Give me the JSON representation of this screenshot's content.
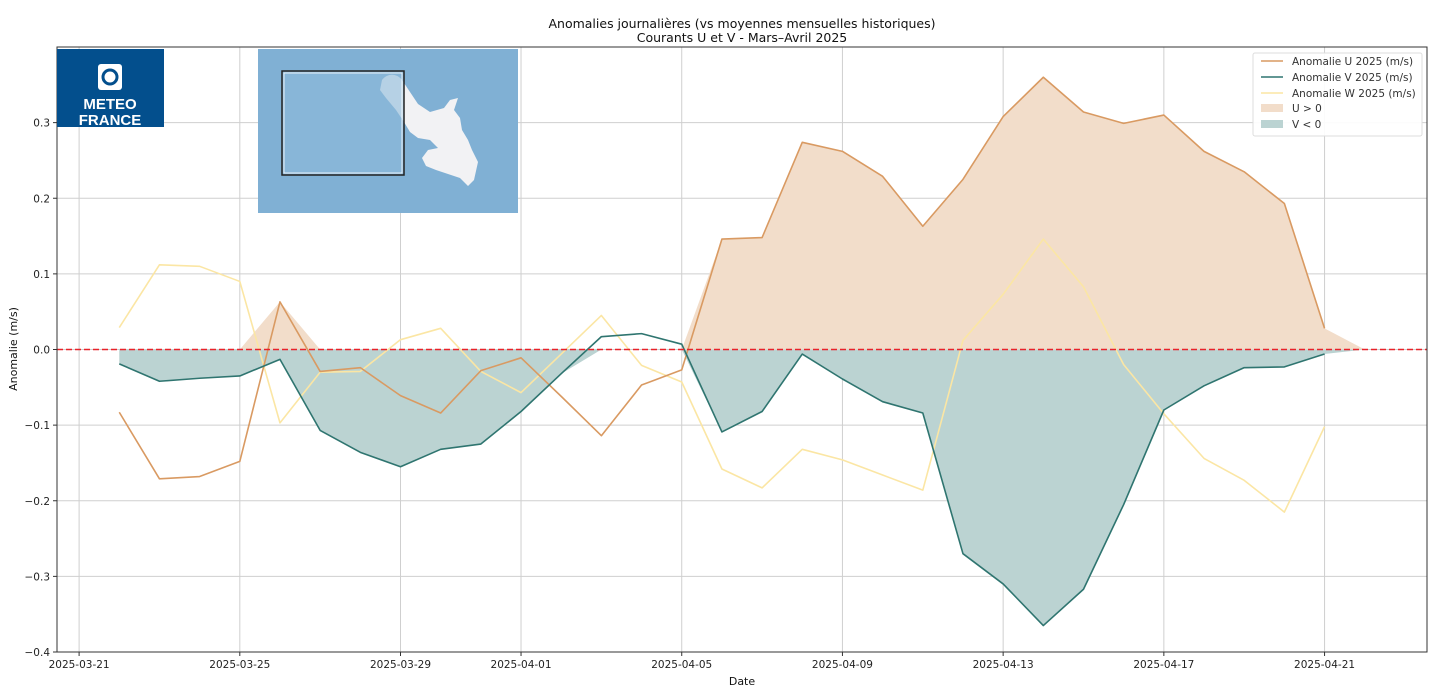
{
  "chart_data": {
    "type": "line",
    "title": "Anomalies journalières (vs moyennes mensuelles historiques)",
    "subtitle": "Courants U et V - Mars–Avril 2025",
    "xlabel": "Date",
    "ylabel": "Anomalie (m/s)",
    "ylim": [
      -0.4,
      0.4
    ],
    "xlim": [
      "2025-03-20",
      "2025-04-23"
    ],
    "grid": true,
    "legend_position": "top-right",
    "x_ticks": [
      "2025-03-21",
      "2025-03-25",
      "2025-03-29",
      "2025-04-01",
      "2025-04-05",
      "2025-04-09",
      "2025-04-13",
      "2025-04-17",
      "2025-04-21"
    ],
    "y_ticks": [
      "−0.4",
      "−0.3",
      "−0.2",
      "−0.1",
      "0.0",
      "0.1",
      "0.2",
      "0.3"
    ],
    "y_tick_values": [
      -0.4,
      -0.3,
      -0.2,
      -0.1,
      0.0,
      0.1,
      0.2,
      0.3
    ],
    "x": [
      "2025-03-22",
      "2025-03-23",
      "2025-03-24",
      "2025-03-25",
      "2025-03-26",
      "2025-03-27",
      "2025-03-28",
      "2025-03-29",
      "2025-03-30",
      "2025-03-31",
      "2025-04-01",
      "2025-04-02",
      "2025-04-03",
      "2025-04-04",
      "2025-04-05",
      "2025-04-06",
      "2025-04-07",
      "2025-04-08",
      "2025-04-09",
      "2025-04-10",
      "2025-04-11",
      "2025-04-12",
      "2025-04-13",
      "2025-04-14",
      "2025-04-15",
      "2025-04-16",
      "2025-04-17",
      "2025-04-18",
      "2025-04-19",
      "2025-04-20",
      "2025-04-21",
      "2025-04-22"
    ],
    "series": [
      {
        "name": "Anomalie U 2025 (m/s)",
        "color": "#d99a62",
        "values": [
          -0.083,
          -0.171,
          -0.168,
          -0.148,
          0.063,
          -0.029,
          -0.024,
          -0.061,
          -0.084,
          -0.028,
          -0.011,
          -0.062,
          -0.114,
          -0.047,
          -0.027,
          0.146,
          0.148,
          0.274,
          0.262,
          0.229,
          0.163,
          0.225,
          0.308,
          0.36,
          0.314,
          0.299,
          0.31,
          0.262,
          0.235,
          0.193,
          0.028,
          null
        ]
      },
      {
        "name": "Anomalie V 2025 (m/s)",
        "color": "#2f7570",
        "values": [
          -0.019,
          -0.042,
          -0.038,
          -0.035,
          -0.013,
          -0.107,
          -0.136,
          -0.155,
          -0.132,
          -0.125,
          -0.082,
          -0.032,
          0.017,
          0.021,
          0.007,
          -0.109,
          -0.082,
          -0.006,
          -0.039,
          -0.069,
          -0.084,
          -0.27,
          -0.31,
          -0.365,
          -0.317,
          -0.205,
          -0.08,
          -0.048,
          -0.024,
          -0.023,
          -0.006,
          null
        ]
      },
      {
        "name": "Anomalie W 2025 (m/s)",
        "color": "#fbe6a4",
        "values": [
          0.029,
          0.112,
          0.11,
          0.09,
          -0.097,
          -0.03,
          -0.029,
          0.013,
          0.028,
          -0.029,
          -0.057,
          -0.006,
          0.045,
          -0.021,
          -0.043,
          -0.158,
          -0.183,
          -0.132,
          -0.146,
          -0.166,
          -0.186,
          0.012,
          0.073,
          0.146,
          0.083,
          -0.02,
          -0.085,
          -0.144,
          -0.173,
          -0.215,
          -0.102,
          null
        ]
      }
    ],
    "fills": [
      {
        "name": "U > 0",
        "color": "#f2ddca"
      },
      {
        "name": "V < 0",
        "color": "#bbd3d2"
      }
    ],
    "reference_line": {
      "value": 0.0,
      "color": "#e8232a",
      "style": "dashed"
    }
  },
  "logo": {
    "text_line1": "METEO",
    "text_line2": "FRANCE",
    "color": "#034f8d"
  },
  "inset_map": {
    "sea_color": "#80b0d4",
    "land_color": "#f2f2f4"
  }
}
